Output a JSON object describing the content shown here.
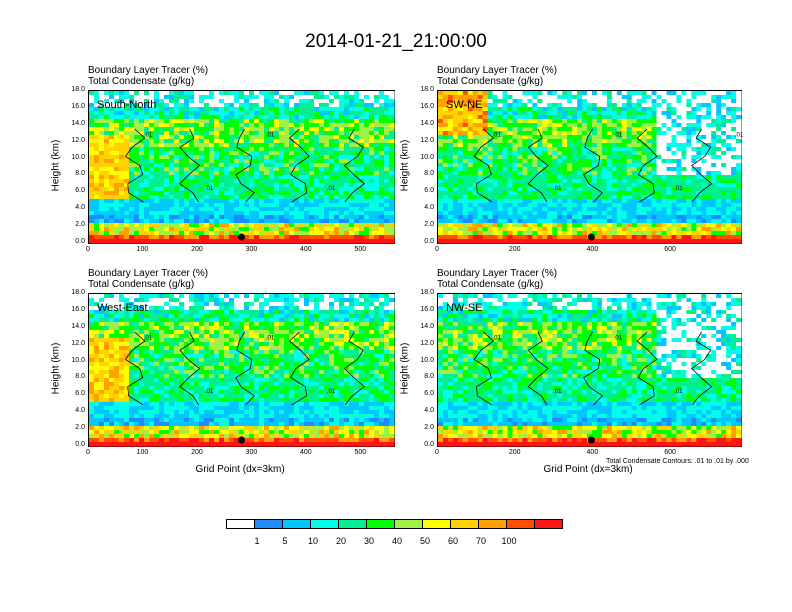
{
  "title": "2014-01-21_21:00:00",
  "panel_title_line1": "Boundary Layer Tracer   (%)",
  "panel_title_line2": "Total Condensate   (g/kg)",
  "y_axis_label": "Height (km)",
  "x_axis_label": "Grid Point (dx=3km)",
  "contour_note": "Total Condensate Contours: .01 to .01 by .000",
  "colors": {
    "levels": [
      "#ffffff",
      "#1e8cff",
      "#00c8ff",
      "#00ffe6",
      "#00f090",
      "#00ff00",
      "#a0f046",
      "#ffff00",
      "#ffd200",
      "#ffa000",
      "#ff5000",
      "#ff1414"
    ]
  },
  "legend": {
    "labels": [
      "1",
      "5",
      "10",
      "20",
      "30",
      "40",
      "50",
      "60",
      "70",
      "100"
    ]
  },
  "chart_data": [
    {
      "type": "heatmap",
      "panel_label": "South-North",
      "title": [
        "Boundary Layer Tracer   (%)",
        "Total Condensate   (g/kg)"
      ],
      "xlabel": "",
      "ylabel": "Height (km)",
      "xlim": [
        0,
        560
      ],
      "ylim": [
        0,
        18
      ],
      "xticks": [
        "0",
        "100",
        "200",
        "300",
        "400",
        "500"
      ],
      "yticks": [
        "0.0",
        "2.0",
        "4.0",
        "6.0",
        "8.0",
        "10.0",
        "12.0",
        "14.0",
        "16.0",
        "18.0"
      ],
      "contour_labels": [
        ".01",
        ".01",
        ".01",
        ".01"
      ],
      "marker_x": 280
    },
    {
      "type": "heatmap",
      "panel_label": "SW-NE",
      "title": [
        "Boundary Layer Tracer   (%)",
        "Total Condensate   (g/kg)"
      ],
      "xlabel": "",
      "ylabel": "Height (km)",
      "xlim": [
        0,
        780
      ],
      "ylim": [
        0,
        18
      ],
      "xticks": [
        "0",
        "200",
        "400",
        "600"
      ],
      "yticks": [
        "0.0",
        "2.0",
        "4.0",
        "6.0",
        "8.0",
        "10.0",
        "12.0",
        "14.0",
        "16.0",
        "18.0"
      ],
      "contour_labels": [
        ".01",
        ".01",
        ".01",
        ".01",
        ".01"
      ],
      "marker_x": 395
    },
    {
      "type": "heatmap",
      "panel_label": "West-East",
      "title": [
        "Boundary Layer Tracer   (%)",
        "Total Condensate   (g/kg)"
      ],
      "xlabel": "Grid Point (dx=3km)",
      "ylabel": "Height (km)",
      "xlim": [
        0,
        560
      ],
      "ylim": [
        0,
        18
      ],
      "xticks": [
        "0",
        "100",
        "200",
        "300",
        "400",
        "500"
      ],
      "yticks": [
        "0.0",
        "2.0",
        "4.0",
        "6.0",
        "8.0",
        "10.0",
        "12.0",
        "14.0",
        "16.0",
        "18.0"
      ],
      "contour_labels": [
        ".01",
        ".01",
        ".01",
        ".01"
      ],
      "marker_x": 280
    },
    {
      "type": "heatmap",
      "panel_label": "NW-SE",
      "title": [
        "Boundary Layer Tracer   (%)",
        "Total Condensate   (g/kg)"
      ],
      "xlabel": "Grid Point (dx=3km)",
      "ylabel": "Height (km)",
      "xlim": [
        0,
        780
      ],
      "ylim": [
        0,
        18
      ],
      "xticks": [
        "0",
        "200",
        "400",
        "600"
      ],
      "yticks": [
        "0.0",
        "2.0",
        "4.0",
        "6.0",
        "8.0",
        "10.0",
        "12.0",
        "14.0",
        "16.0",
        "18.0"
      ],
      "contour_labels": [
        ".01",
        ".01",
        ".01",
        ".01"
      ],
      "marker_x": 395
    }
  ]
}
